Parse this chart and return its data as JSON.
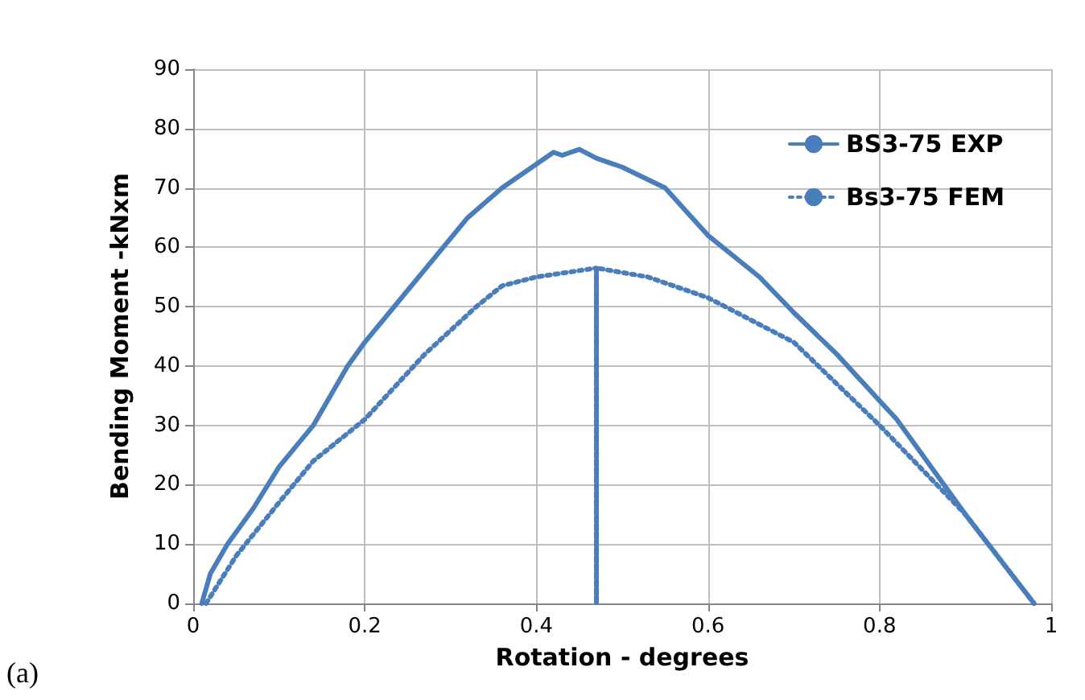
{
  "chart_data": {
    "type": "line",
    "xlabel": "Rotation - degrees",
    "ylabel": "Bending Moment -kNxm",
    "annotations": [
      "(a)"
    ],
    "xlim": [
      0,
      1
    ],
    "xticks": [
      0,
      0.2,
      0.4,
      0.6,
      0.8,
      1
    ],
    "ylim": [
      0,
      90
    ],
    "yticks": [
      0,
      10,
      20,
      30,
      40,
      50,
      60,
      70,
      80,
      90
    ],
    "grid": true,
    "legend": "top right",
    "marker": "none",
    "series": [
      {
        "name": "BS3-75 EXP",
        "color": "#4a7ebb",
        "line_style": "solid",
        "x": [
          0.01,
          0.02,
          0.04,
          0.07,
          0.1,
          0.14,
          0.18,
          0.2,
          0.24,
          0.28,
          0.32,
          0.36,
          0.4,
          0.42,
          0.43,
          0.45,
          0.47,
          0.49,
          0.5,
          0.55,
          0.6,
          0.66,
          0.7,
          0.75,
          0.82,
          0.9,
          0.98
        ],
        "values": [
          0,
          5,
          10,
          16,
          23,
          30,
          40,
          44,
          51,
          58,
          65,
          70,
          74,
          76,
          75.5,
          76.5,
          75,
          74,
          73.5,
          70,
          62,
          55,
          49,
          42,
          31,
          15,
          0
        ]
      },
      {
        "name": "Bs3-75 FEM",
        "color": "#4a7ebb",
        "line_style": "dotted",
        "x": [
          0.015,
          0.05,
          0.1,
          0.14,
          0.2,
          0.27,
          0.33,
          0.36,
          0.4,
          0.47,
          0.47,
          0.47,
          0.53,
          0.6,
          0.7,
          0.8,
          0.9,
          0.98
        ],
        "values": [
          0,
          8,
          17,
          24,
          31,
          42,
          50,
          53.5,
          55,
          56.5,
          0,
          56.5,
          55,
          51.5,
          44,
          30,
          15,
          0
        ]
      }
    ]
  }
}
